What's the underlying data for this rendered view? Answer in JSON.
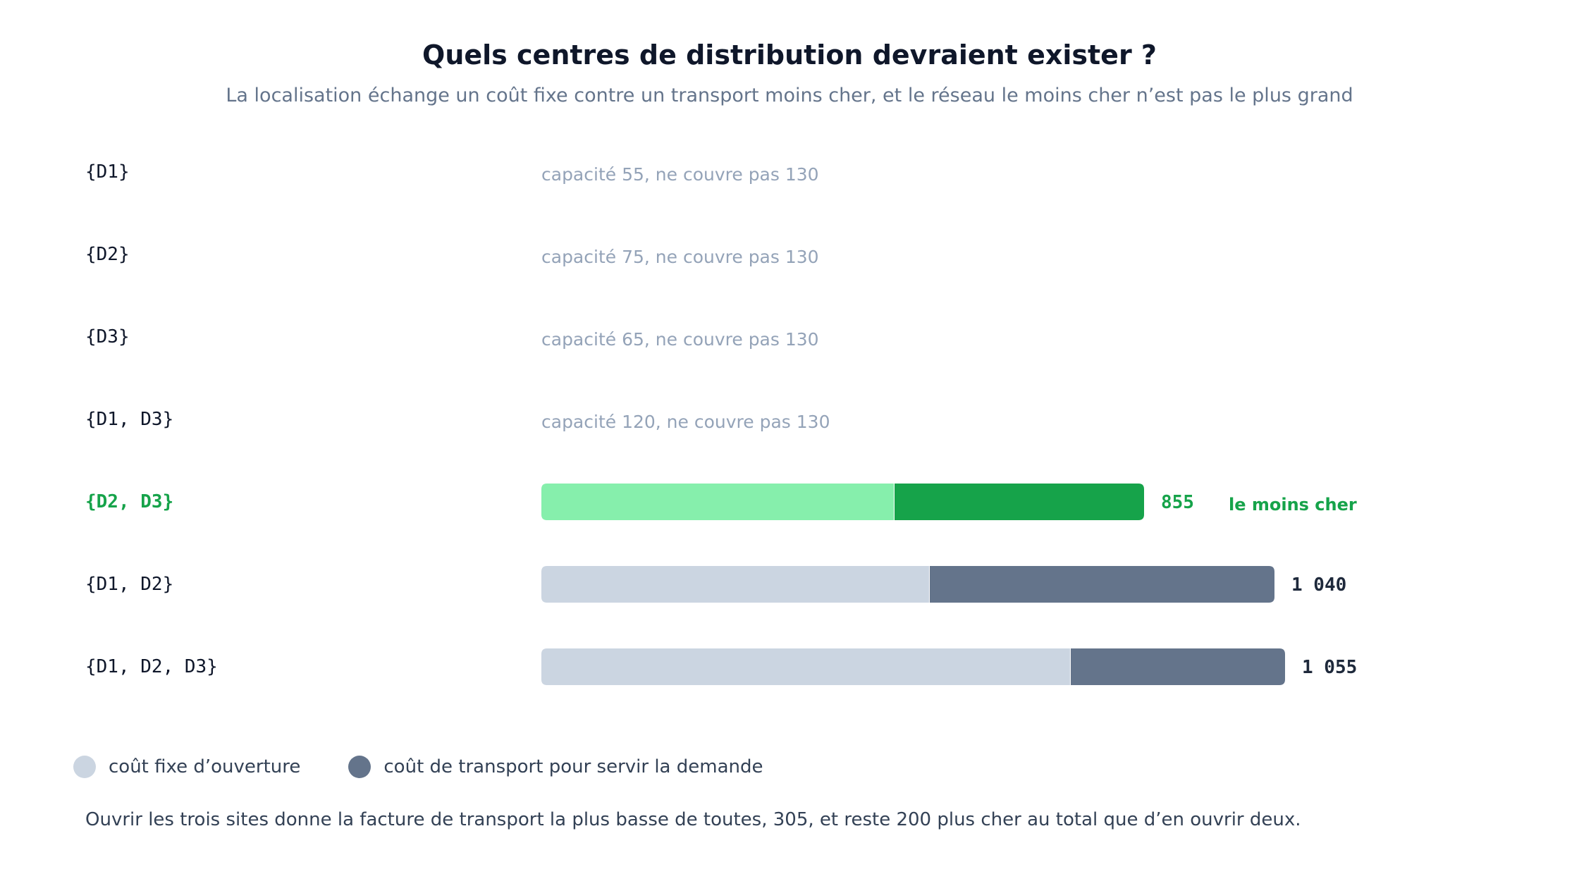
{
  "title": "Quels centres de distribution devraient exister ?",
  "subtitle": "La localisation échange un coût fixe contre un transport moins cher, et le réseau le moins cher n’est pas le plus grand",
  "colors": {
    "fixed_default": "#cbd5e1",
    "transport_default": "#64748b",
    "fixed_highlight": "#86efac",
    "transport_highlight": "#16a34a",
    "infeasible_text": "#94a3b8",
    "label_default": "#0f172a",
    "value_default": "#1e293b"
  },
  "legend": {
    "fixed_label": "coût fixe d’ouverture",
    "transport_label": "coût de transport pour servir la demande"
  },
  "footnote": "Ouvrir les trois sites donne la facture de transport la plus basse de toutes, 305, et reste 200 plus cher au total que d’en ouvrir deux.",
  "chart_data": {
    "type": "bar",
    "orientation": "horizontal",
    "stacked": true,
    "title": "Quels centres de distribution devraient exister ?",
    "subtitle": "La localisation échange un coût fixe contre un transport moins cher, et le réseau le moins cher n’est pas le plus grand",
    "xlim": [
      0,
      1100
    ],
    "grid": false,
    "legend_position": "bottom-left",
    "categories": [
      "{D1}",
      "{D2}",
      "{D3}",
      "{D1, D3}",
      "{D2, D3}",
      "{D1, D2}",
      "{D1, D2, D3}"
    ],
    "series": [
      {
        "name": "coût fixe d’ouverture",
        "values": [
          null,
          null,
          null,
          null,
          500,
          550,
          750
        ]
      },
      {
        "name": "coût de transport pour servir la demande",
        "values": [
          null,
          null,
          null,
          null,
          355,
          490,
          305
        ]
      }
    ],
    "rows": [
      {
        "label": "{D1}",
        "feasible": false,
        "note": "capacité 55, ne couvre pas 130"
      },
      {
        "label": "{D2}",
        "feasible": false,
        "note": "capacité 75, ne couvre pas 130"
      },
      {
        "label": "{D3}",
        "feasible": false,
        "note": "capacité 65, ne couvre pas 130"
      },
      {
        "label": "{D1, D3}",
        "feasible": false,
        "note": "capacité 120, ne couvre pas 130"
      },
      {
        "label": "{D2, D3}",
        "feasible": true,
        "fixed": 500,
        "transport": 355,
        "total_label": "855",
        "highlight": true,
        "tag": "le moins cher"
      },
      {
        "label": "{D1, D2}",
        "feasible": true,
        "fixed": 550,
        "transport": 490,
        "total_label": "1 040",
        "highlight": false
      },
      {
        "label": "{D1, D2, D3}",
        "feasible": true,
        "fixed": 750,
        "transport": 305,
        "total_label": "1 055",
        "highlight": false
      }
    ]
  }
}
